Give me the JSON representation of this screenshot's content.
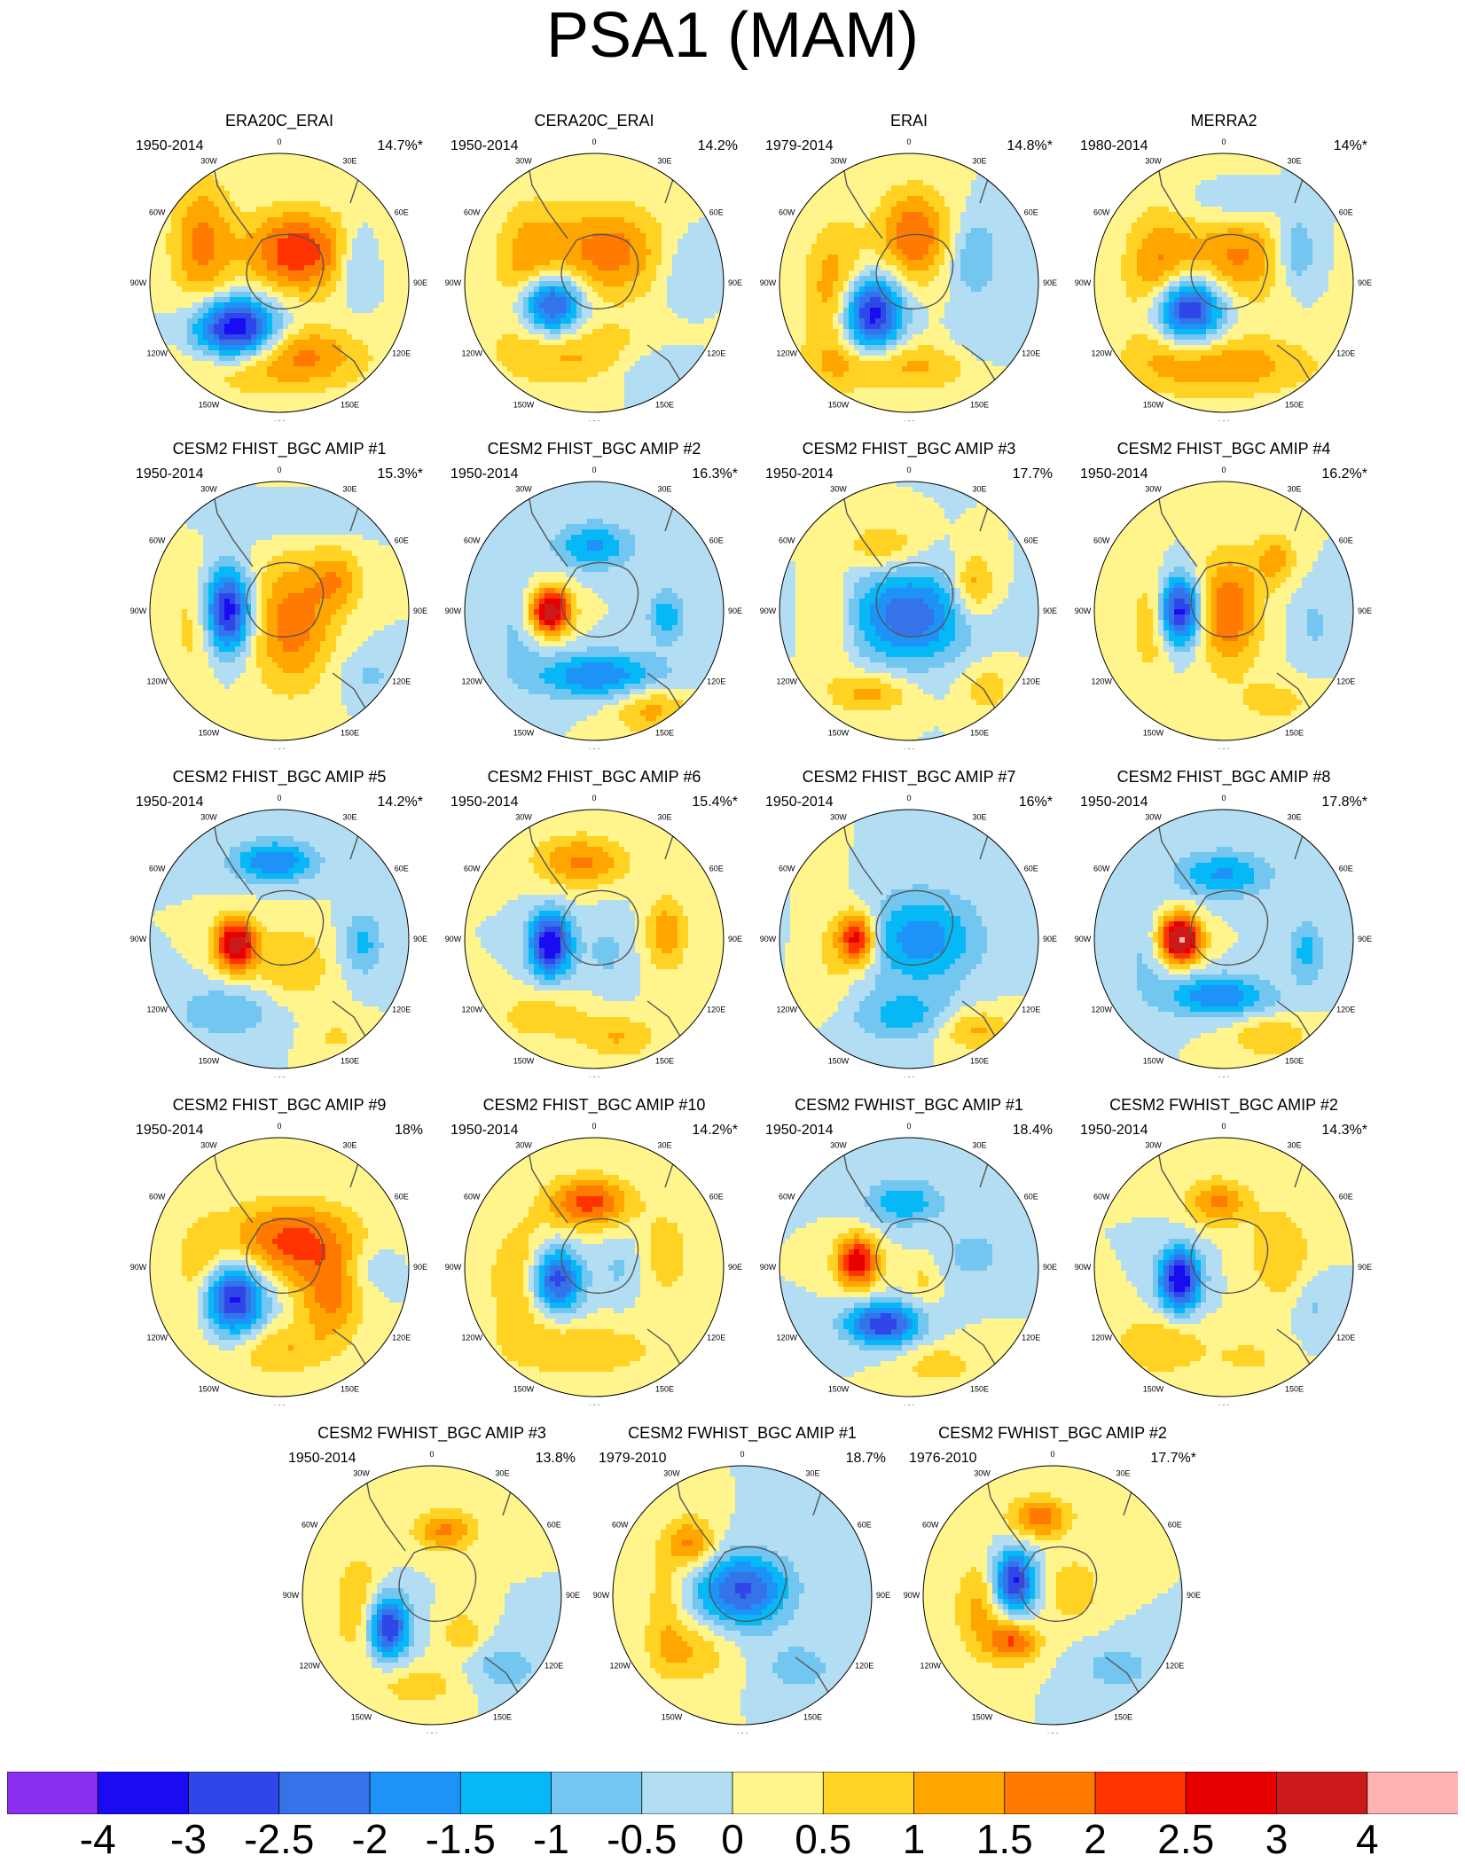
{
  "title": "PSA1 (MAM)",
  "lon_labels": [
    "0",
    "30E",
    "60E",
    "90E",
    "120E",
    "150E",
    "180",
    "150W",
    "120W",
    "90W",
    "60W",
    "30W"
  ],
  "colorbar": {
    "labels": [
      "-4",
      "-3",
      "-2.5",
      "-2",
      "-1.5",
      "-1",
      "-0.5",
      "0",
      "0.5",
      "1",
      "1.5",
      "2",
      "2.5",
      "3",
      "4"
    ],
    "colors": [
      "#8a2ff0",
      "#1a0cf2",
      "#2f47e8",
      "#3473e8",
      "#1e93f7",
      "#07b8f7",
      "#72c6f0",
      "#b3ddf2",
      "#fff58c",
      "#ffd224",
      "#ffa600",
      "#ff7a00",
      "#ff3300",
      "#e60000",
      "#cc1a1a",
      "#ffb3b3"
    ]
  },
  "chart_data": {
    "type": "heatmap",
    "title": "PSA1 (MAM)",
    "projection": "south polar stereographic",
    "levels": [
      -4,
      -3,
      -2.5,
      -2,
      -1.5,
      -1,
      -0.5,
      0,
      0.5,
      1,
      1.5,
      2,
      2.5,
      3,
      4
    ],
    "panels": [
      {
        "title": "ERA20C_ERAI",
        "period": "1950-2014",
        "pct": "14.7%*",
        "pattern": [
          [
            0.33,
            0.68,
            -3.8,
            0.16,
            0.12
          ],
          [
            0.57,
            0.38,
            2.4,
            0.2,
            0.16
          ],
          [
            0.2,
            0.35,
            1.6,
            0.12,
            0.26
          ],
          [
            0.48,
            0.82,
            1.2,
            0.35,
            0.12
          ],
          [
            0.8,
            0.42,
            -1.0,
            0.07,
            0.14
          ],
          [
            0.6,
            0.75,
            0.8,
            0.2,
            0.1
          ]
        ]
      },
      {
        "title": "CERA20C_ERAI",
        "period": "1950-2014",
        "pct": "14.2%",
        "pattern": [
          [
            0.33,
            0.58,
            -3.4,
            0.12,
            0.12
          ],
          [
            0.55,
            0.38,
            1.8,
            0.22,
            0.18
          ],
          [
            0.25,
            0.45,
            1.4,
            0.13,
            0.25
          ],
          [
            0.48,
            0.78,
            1.2,
            0.35,
            0.12
          ],
          [
            0.72,
            0.82,
            -1.0,
            0.2,
            0.1
          ],
          [
            0.85,
            0.45,
            -0.6,
            0.1,
            0.15
          ]
        ]
      },
      {
        "title": "ERAI",
        "period": "1979-2014",
        "pct": "14.8%*",
        "pattern": [
          [
            0.35,
            0.62,
            -3.6,
            0.12,
            0.15
          ],
          [
            0.52,
            0.32,
            2.0,
            0.14,
            0.18
          ],
          [
            0.22,
            0.55,
            1.6,
            0.12,
            0.26
          ],
          [
            0.45,
            0.82,
            1.2,
            0.35,
            0.1
          ],
          [
            0.75,
            0.4,
            -1.0,
            0.1,
            0.16
          ],
          [
            0.8,
            0.75,
            -0.6,
            0.15,
            0.1
          ]
        ]
      },
      {
        "title": "MERRA2",
        "period": "1980-2014",
        "pct": "14%*",
        "pattern": [
          [
            0.35,
            0.6,
            -3.8,
            0.14,
            0.13
          ],
          [
            0.55,
            0.4,
            1.6,
            0.2,
            0.18
          ],
          [
            0.25,
            0.5,
            1.8,
            0.13,
            0.26
          ],
          [
            0.5,
            0.82,
            1.4,
            0.35,
            0.12
          ],
          [
            0.78,
            0.38,
            -1.2,
            0.08,
            0.14
          ],
          [
            0.55,
            0.2,
            -0.6,
            0.2,
            0.08
          ]
        ]
      },
      {
        "title": "CESM2 FHIST_BGC AMIP #1",
        "period": "1950-2014",
        "pct": "15.3%*",
        "pattern": [
          [
            0.3,
            0.5,
            -3.5,
            0.09,
            0.16
          ],
          [
            0.55,
            0.55,
            1.8,
            0.16,
            0.25
          ],
          [
            0.72,
            0.38,
            1.2,
            0.1,
            0.12
          ],
          [
            0.18,
            0.55,
            0.8,
            0.1,
            0.22
          ],
          [
            0.55,
            0.15,
            -0.6,
            0.25,
            0.07
          ],
          [
            0.85,
            0.75,
            -0.6,
            0.12,
            0.1
          ]
        ]
      },
      {
        "title": "CESM2 FHIST_BGC AMIP #2",
        "period": "1950-2014",
        "pct": "16.3%*",
        "pattern": [
          [
            0.33,
            0.5,
            3.6,
            0.08,
            0.09
          ],
          [
            0.52,
            0.75,
            -2.0,
            0.25,
            0.09
          ],
          [
            0.5,
            0.25,
            -1.6,
            0.15,
            0.09
          ],
          [
            0.78,
            0.52,
            -1.4,
            0.07,
            0.1
          ],
          [
            0.72,
            0.88,
            1.2,
            0.15,
            0.1
          ],
          [
            0.2,
            0.55,
            -0.6,
            0.1,
            0.22
          ]
        ]
      },
      {
        "title": "CESM2 FHIST_BGC AMIP #3",
        "period": "1950-2014",
        "pct": "17.7%",
        "pattern": [
          [
            0.5,
            0.52,
            -2.4,
            0.22,
            0.18
          ],
          [
            0.75,
            0.4,
            1.4,
            0.08,
            0.12
          ],
          [
            0.35,
            0.82,
            1.2,
            0.15,
            0.08
          ],
          [
            0.4,
            0.25,
            1.0,
            0.15,
            0.09
          ],
          [
            0.8,
            0.8,
            0.8,
            0.1,
            0.1
          ],
          [
            0.2,
            0.55,
            0.8,
            0.08,
            0.2
          ]
        ]
      },
      {
        "title": "CESM2 FHIST_BGC AMIP #4",
        "period": "1950-2014",
        "pct": "16.2%*",
        "pattern": [
          [
            0.33,
            0.5,
            -3.4,
            0.08,
            0.13
          ],
          [
            0.52,
            0.5,
            2.0,
            0.12,
            0.22
          ],
          [
            0.7,
            0.3,
            1.2,
            0.08,
            0.1
          ],
          [
            0.22,
            0.55,
            1.0,
            0.08,
            0.2
          ],
          [
            0.7,
            0.85,
            0.8,
            0.14,
            0.08
          ],
          [
            0.85,
            0.55,
            -0.6,
            0.08,
            0.14
          ]
        ]
      },
      {
        "title": "CESM2 FHIST_BGC AMIP #5",
        "period": "1950-2014",
        "pct": "14.2%*",
        "pattern": [
          [
            0.33,
            0.52,
            3.4,
            0.08,
            0.1
          ],
          [
            0.48,
            0.2,
            -2.0,
            0.16,
            0.08
          ],
          [
            0.82,
            0.52,
            -1.2,
            0.08,
            0.12
          ],
          [
            0.3,
            0.78,
            -1.0,
            0.2,
            0.1
          ],
          [
            0.55,
            0.6,
            1.0,
            0.15,
            0.15
          ],
          [
            0.72,
            0.88,
            0.6,
            0.1,
            0.08
          ]
        ]
      },
      {
        "title": "CESM2 FHIST_BGC AMIP #6",
        "period": "1950-2014",
        "pct": "15.4%*",
        "pattern": [
          [
            0.33,
            0.52,
            -3.6,
            0.08,
            0.12
          ],
          [
            0.45,
            0.2,
            1.6,
            0.18,
            0.1
          ],
          [
            0.78,
            0.48,
            1.4,
            0.08,
            0.14
          ],
          [
            0.3,
            0.8,
            0.8,
            0.2,
            0.1
          ],
          [
            0.55,
            0.55,
            -0.6,
            0.1,
            0.15
          ],
          [
            0.6,
            0.88,
            1.0,
            0.15,
            0.08
          ]
        ]
      },
      {
        "title": "CESM2 FHIST_BGC AMIP #7",
        "period": "1950-2014",
        "pct": "16%*",
        "pattern": [
          [
            0.3,
            0.5,
            3.0,
            0.07,
            0.1
          ],
          [
            0.55,
            0.5,
            -1.8,
            0.22,
            0.18
          ],
          [
            0.48,
            0.8,
            -1.2,
            0.2,
            0.1
          ],
          [
            0.75,
            0.85,
            1.2,
            0.15,
            0.08
          ],
          [
            0.2,
            0.55,
            0.6,
            0.08,
            0.22
          ]
        ]
      },
      {
        "title": "CESM2 FHIST_BGC AMIP #8",
        "period": "1950-2014",
        "pct": "17.8%*",
        "pattern": [
          [
            0.33,
            0.5,
            4.2,
            0.08,
            0.09
          ],
          [
            0.5,
            0.25,
            -1.6,
            0.18,
            0.09
          ],
          [
            0.48,
            0.72,
            -2.0,
            0.2,
            0.08
          ],
          [
            0.82,
            0.55,
            -1.2,
            0.07,
            0.12
          ],
          [
            0.68,
            0.88,
            1.0,
            0.15,
            0.08
          ],
          [
            0.2,
            0.55,
            -0.6,
            0.1,
            0.2
          ]
        ]
      },
      {
        "title": "CESM2 FHIST_BGC AMIP #9",
        "period": "1950-2014",
        "pct": "18%",
        "pattern": [
          [
            0.32,
            0.62,
            -3.4,
            0.12,
            0.14
          ],
          [
            0.55,
            0.4,
            2.2,
            0.25,
            0.15
          ],
          [
            0.7,
            0.62,
            1.6,
            0.12,
            0.16
          ],
          [
            0.2,
            0.55,
            1.0,
            0.1,
            0.22
          ],
          [
            0.5,
            0.82,
            1.0,
            0.2,
            0.1
          ],
          [
            0.85,
            0.5,
            -0.6,
            0.1,
            0.1
          ]
        ]
      },
      {
        "title": "CESM2 FHIST_BGC AMIP #10",
        "period": "1950-2014",
        "pct": "14.2%*",
        "pattern": [
          [
            0.35,
            0.55,
            -3.0,
            0.1,
            0.12
          ],
          [
            0.48,
            0.25,
            2.2,
            0.16,
            0.1
          ],
          [
            0.22,
            0.55,
            1.2,
            0.12,
            0.22
          ],
          [
            0.45,
            0.82,
            1.0,
            0.3,
            0.1
          ],
          [
            0.6,
            0.5,
            -0.6,
            0.08,
            0.12
          ],
          [
            0.78,
            0.45,
            0.8,
            0.1,
            0.18
          ]
        ]
      },
      {
        "title": "CESM2 FWHIST_BGC AMIP #1",
        "period": "1950-2014",
        "pct": "18.4%",
        "pattern": [
          [
            0.3,
            0.48,
            3.0,
            0.08,
            0.1
          ],
          [
            0.4,
            0.72,
            -3.0,
            0.14,
            0.08
          ],
          [
            0.48,
            0.25,
            -1.4,
            0.15,
            0.09
          ],
          [
            0.75,
            0.45,
            -0.8,
            0.12,
            0.1
          ],
          [
            0.62,
            0.88,
            0.8,
            0.15,
            0.08
          ],
          [
            0.55,
            0.55,
            0.6,
            0.06,
            0.08
          ]
        ]
      },
      {
        "title": "CESM2 FWHIST_BGC AMIP #2",
        "period": "1950-2014",
        "pct": "14.3%*",
        "pattern": [
          [
            0.33,
            0.55,
            -3.6,
            0.08,
            0.12
          ],
          [
            0.48,
            0.25,
            1.6,
            0.12,
            0.09
          ],
          [
            0.72,
            0.45,
            1.0,
            0.12,
            0.18
          ],
          [
            0.25,
            0.8,
            1.0,
            0.18,
            0.12
          ],
          [
            0.6,
            0.85,
            0.6,
            0.15,
            0.08
          ],
          [
            0.85,
            0.65,
            -0.6,
            0.08,
            0.12
          ]
        ]
      },
      {
        "title": "CESM2 FWHIST_BGC AMIP #3",
        "period": "1950-2014",
        "pct": "13.8%",
        "pattern": [
          [
            0.33,
            0.62,
            -3.2,
            0.08,
            0.12
          ],
          [
            0.55,
            0.25,
            1.6,
            0.12,
            0.08
          ],
          [
            0.22,
            0.55,
            1.0,
            0.1,
            0.22
          ],
          [
            0.62,
            0.65,
            1.0,
            0.08,
            0.08
          ],
          [
            0.78,
            0.78,
            -0.8,
            0.15,
            0.1
          ],
          [
            0.45,
            0.85,
            0.8,
            0.18,
            0.08
          ]
        ]
      },
      {
        "title": "CESM2 FWHIST_BGC AMIP #1",
        "period": "1979-2010",
        "pct": "18.7%",
        "pattern": [
          [
            0.5,
            0.48,
            -2.6,
            0.18,
            0.14
          ],
          [
            0.3,
            0.3,
            1.6,
            0.1,
            0.1
          ],
          [
            0.3,
            0.72,
            1.0,
            0.15,
            0.12
          ],
          [
            0.72,
            0.78,
            -0.8,
            0.14,
            0.1
          ],
          [
            0.2,
            0.55,
            0.8,
            0.08,
            0.22
          ]
        ]
      },
      {
        "title": "CESM2 FWHIST_BGC AMIP #2",
        "period": "1976-2010",
        "pct": "17.7%*",
        "pattern": [
          [
            0.35,
            0.45,
            -3.2,
            0.08,
            0.12
          ],
          [
            0.45,
            0.2,
            1.8,
            0.12,
            0.08
          ],
          [
            0.35,
            0.68,
            2.0,
            0.1,
            0.08
          ],
          [
            0.22,
            0.55,
            1.2,
            0.1,
            0.18
          ],
          [
            0.58,
            0.48,
            1.0,
            0.1,
            0.12
          ],
          [
            0.75,
            0.78,
            -0.8,
            0.14,
            0.09
          ]
        ]
      }
    ]
  }
}
